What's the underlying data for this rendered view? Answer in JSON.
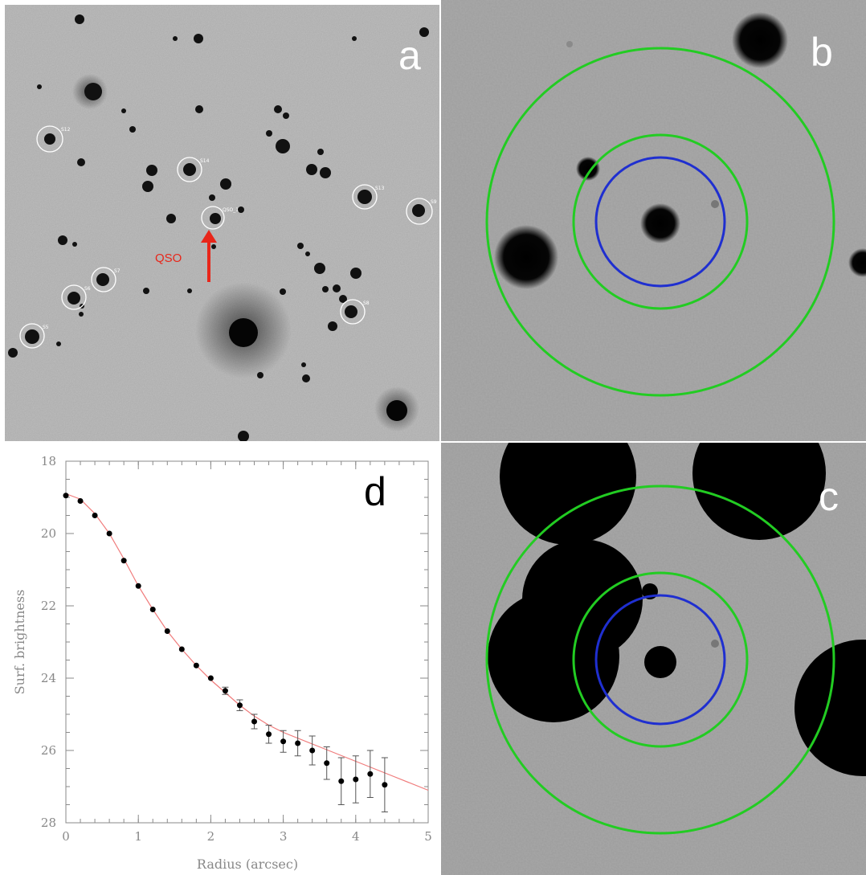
{
  "panels": {
    "a": {
      "letter": "a",
      "label_color": "#ffffff",
      "qso_label": "QSO",
      "qso_color": "#e8261a",
      "marked_objects": [
        {
          "id": "S12",
          "label": "S12"
        },
        {
          "id": "S14",
          "label": "S14"
        },
        {
          "id": "QSO",
          "label": "QSO_1"
        },
        {
          "id": "S13",
          "label": "S13"
        },
        {
          "id": "S9",
          "label": "S9"
        },
        {
          "id": "S7",
          "label": "S7"
        },
        {
          "id": "S6",
          "label": "S6"
        },
        {
          "id": "S5",
          "label": "S5"
        },
        {
          "id": "S8",
          "label": "S8"
        }
      ]
    },
    "b": {
      "letter": "b",
      "label_color": "#ffffff",
      "aperture_color": "#1f2fd0",
      "annulus_color": "#22cc22"
    },
    "c": {
      "letter": "c",
      "label_color": "#ffffff",
      "aperture_color": "#1f2fd0",
      "annulus_color": "#22cc22"
    },
    "d": {
      "letter": "d",
      "label_color": "#000000"
    }
  },
  "chart_data": {
    "type": "scatter",
    "xlabel": "Radius (arcsec)",
    "ylabel": "Surf. brightness",
    "xlim": [
      0,
      5
    ],
    "ylim": [
      28,
      18
    ],
    "y_inverted": true,
    "xticks": [
      0,
      1,
      2,
      3,
      4,
      5
    ],
    "yticks": [
      18,
      20,
      22,
      24,
      26,
      28
    ],
    "marker_color": "#000000",
    "fit_color": "#f07b7b",
    "points": [
      {
        "x": 0.0,
        "y": 18.95,
        "err": 0.0
      },
      {
        "x": 0.2,
        "y": 19.1,
        "err": 0.0
      },
      {
        "x": 0.4,
        "y": 19.5,
        "err": 0.0
      },
      {
        "x": 0.6,
        "y": 20.0,
        "err": 0.0
      },
      {
        "x": 0.8,
        "y": 20.75,
        "err": 0.0
      },
      {
        "x": 1.0,
        "y": 21.45,
        "err": 0.0
      },
      {
        "x": 1.2,
        "y": 22.1,
        "err": 0.0
      },
      {
        "x": 1.4,
        "y": 22.7,
        "err": 0.0
      },
      {
        "x": 1.6,
        "y": 23.2,
        "err": 0.0
      },
      {
        "x": 1.8,
        "y": 23.65,
        "err": 0.0
      },
      {
        "x": 2.0,
        "y": 24.0,
        "err": 0.0
      },
      {
        "x": 2.2,
        "y": 24.35,
        "err": 0.1
      },
      {
        "x": 2.4,
        "y": 24.75,
        "err": 0.15
      },
      {
        "x": 2.6,
        "y": 25.2,
        "err": 0.2
      },
      {
        "x": 2.8,
        "y": 25.55,
        "err": 0.25
      },
      {
        "x": 3.0,
        "y": 25.75,
        "err": 0.3
      },
      {
        "x": 3.2,
        "y": 25.8,
        "err": 0.35
      },
      {
        "x": 3.4,
        "y": 26.0,
        "err": 0.4
      },
      {
        "x": 3.6,
        "y": 26.35,
        "err": 0.45
      },
      {
        "x": 3.8,
        "y": 26.85,
        "err": 0.65
      },
      {
        "x": 4.0,
        "y": 26.8,
        "err": 0.65
      },
      {
        "x": 4.2,
        "y": 26.65,
        "err": 0.65
      },
      {
        "x": 4.4,
        "y": 26.95,
        "err": 0.75
      }
    ],
    "fit": [
      {
        "x": 0.0,
        "y": 18.9
      },
      {
        "x": 0.2,
        "y": 19.05
      },
      {
        "x": 0.4,
        "y": 19.45
      },
      {
        "x": 0.6,
        "y": 20.0
      },
      {
        "x": 0.8,
        "y": 20.7
      },
      {
        "x": 1.0,
        "y": 21.45
      },
      {
        "x": 1.2,
        "y": 22.1
      },
      {
        "x": 1.4,
        "y": 22.7
      },
      {
        "x": 1.6,
        "y": 23.2
      },
      {
        "x": 1.8,
        "y": 23.65
      },
      {
        "x": 2.0,
        "y": 24.05
      },
      {
        "x": 2.2,
        "y": 24.4
      },
      {
        "x": 2.4,
        "y": 24.75
      },
      {
        "x": 2.6,
        "y": 25.05
      },
      {
        "x": 2.8,
        "y": 25.3
      },
      {
        "x": 3.0,
        "y": 25.5
      },
      {
        "x": 3.5,
        "y": 25.9
      },
      {
        "x": 4.0,
        "y": 26.3
      },
      {
        "x": 4.5,
        "y": 26.7
      },
      {
        "x": 5.0,
        "y": 27.1
      }
    ]
  }
}
